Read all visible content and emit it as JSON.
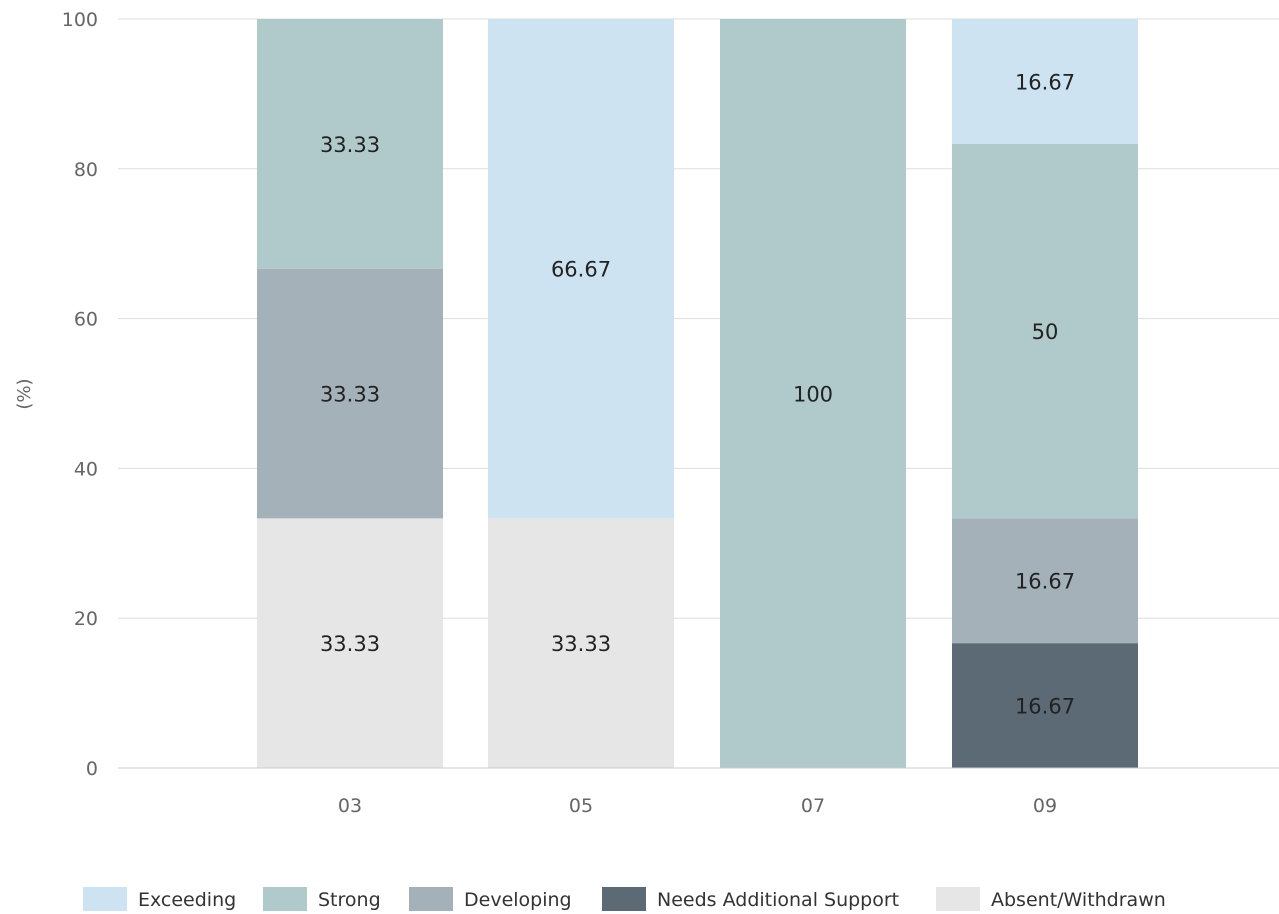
{
  "chart_data": {
    "type": "bar",
    "stacked": true,
    "ylabel": "(%)",
    "ylim": [
      0,
      100
    ],
    "y_ticks": [
      "0",
      "20",
      "40",
      "60",
      "80",
      "100"
    ],
    "categories": [
      "03",
      "05",
      "07",
      "09"
    ],
    "grid": true,
    "legend_position": "bottom",
    "series": [
      {
        "name": "Absent/Withdrawn",
        "color": "#e6e6e6",
        "values": [
          33.33,
          33.33,
          0,
          0
        ],
        "labels": [
          "33.33",
          "33.33",
          "",
          ""
        ]
      },
      {
        "name": "Needs Additional Support",
        "color": "#5b6a74",
        "values": [
          0,
          0,
          0,
          16.67
        ],
        "labels": [
          "",
          "",
          "",
          "16.67"
        ]
      },
      {
        "name": "Developing",
        "color": "#a4b1b8",
        "values": [
          33.33,
          0,
          0,
          16.67
        ],
        "labels": [
          "33.33",
          "",
          "",
          "16.67"
        ]
      },
      {
        "name": "Strong",
        "color": "#b0c9ca",
        "values": [
          33.33,
          0,
          100,
          50
        ],
        "labels": [
          "33.33",
          "",
          "100",
          "50"
        ]
      },
      {
        "name": "Exceeding",
        "color": "#cde3f2",
        "values": [
          0,
          66.67,
          0,
          16.67
        ],
        "labels": [
          "",
          "66.67",
          "",
          "16.67"
        ]
      }
    ],
    "legend": [
      {
        "name": "Exceeding",
        "color": "#cde3f2"
      },
      {
        "name": "Strong",
        "color": "#b0c9ca"
      },
      {
        "name": "Developing",
        "color": "#a4b1b8"
      },
      {
        "name": "Needs Additional Support",
        "color": "#5b6a74"
      },
      {
        "name": "Absent/Withdrawn",
        "color": "#e6e6e6"
      }
    ]
  }
}
